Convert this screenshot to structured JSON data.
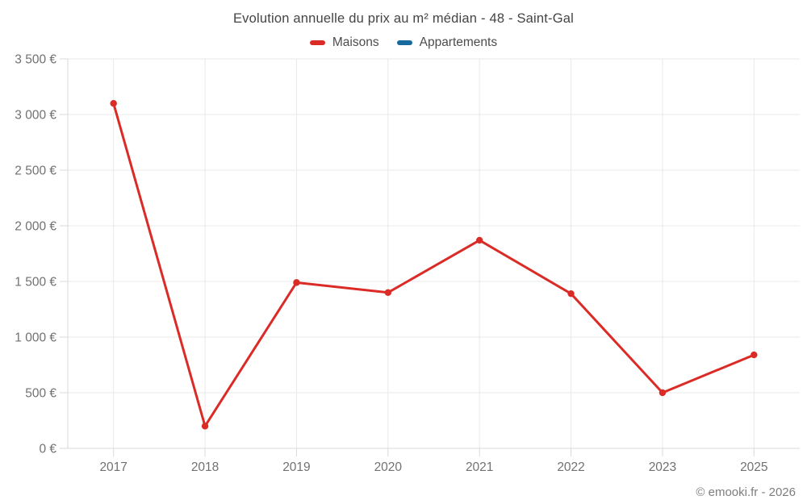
{
  "header": {
    "title": "Evolution annuelle du prix au m² médian - 48 - Saint-Gal"
  },
  "legend": {
    "items": [
      {
        "label": "Maisons",
        "color": "#db2b27"
      },
      {
        "label": "Appartements",
        "color": "#17699e"
      }
    ]
  },
  "footer": {
    "copyright": "© emooki.fr - 2026"
  },
  "style": {
    "grid_color": "#e9e9e9",
    "axis_color": "#d9d9d9",
    "tick_color": "#d9d9d9",
    "label_color": "#717171",
    "background": "#ffffff"
  },
  "chart_data": {
    "type": "line",
    "title": "Evolution annuelle du prix au m² médian - 48 - Saint-Gal",
    "categories": [
      "2017",
      "2018",
      "2019",
      "2020",
      "2021",
      "2022",
      "2023",
      "2025"
    ],
    "series": [
      {
        "name": "Maisons",
        "color": "#db2b27",
        "values": [
          3100,
          200,
          1490,
          1400,
          1870,
          1390,
          500,
          840
        ]
      },
      {
        "name": "Appartements",
        "color": "#17699e",
        "values": []
      }
    ],
    "xlabel": "",
    "ylabel": "",
    "ylim": [
      0,
      3500
    ],
    "ytick_step": 500,
    "ytick_labels": [
      "0 €",
      "500 €",
      "1 000 €",
      "1 500 €",
      "2 000 €",
      "2 500 €",
      "3 000 €",
      "3 500 €"
    ],
    "grid": true,
    "legend_position": "top",
    "marker": "circle"
  }
}
